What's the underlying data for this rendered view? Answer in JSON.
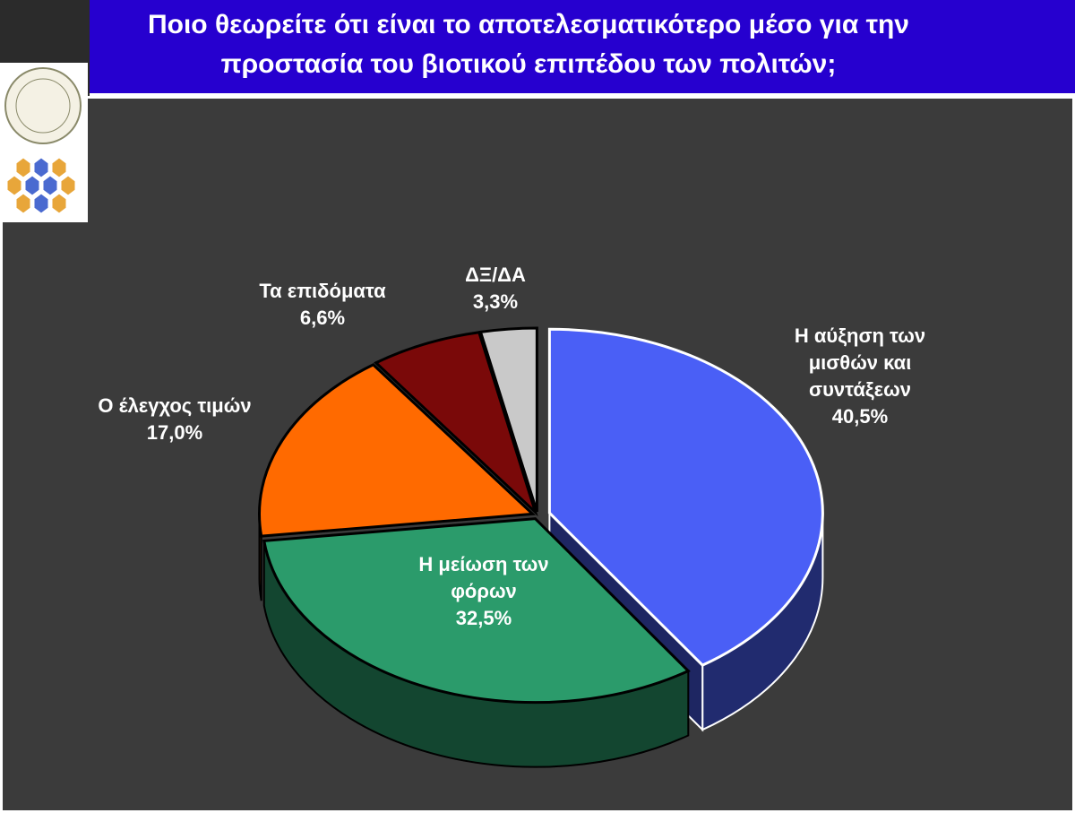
{
  "chart_data": {
    "type": "pie3d",
    "title": "Ποιο θεωρείτε ότι είναι το αποτελεσματικότερο μέσο για την προστασία του βιοτικού επιπέδου των πολιτών;",
    "categories": [
      "Η αύξηση των μισθών και συντάξεων",
      "Η μείωση των φόρων",
      "Ο έλεγχος τιμών",
      "Τα επιδόματα",
      "ΔΞ/ΔΑ"
    ],
    "values": [
      40.5,
      32.5,
      17.0,
      6.6,
      3.3
    ],
    "value_labels": [
      "40,5%",
      "32,5%",
      "17,0%",
      "6,6%",
      "3,3%"
    ],
    "colors": [
      "#4a5ff6",
      "#2b9b6b",
      "#ff6a00",
      "#7a0909",
      "#c9c9c9"
    ]
  }
}
